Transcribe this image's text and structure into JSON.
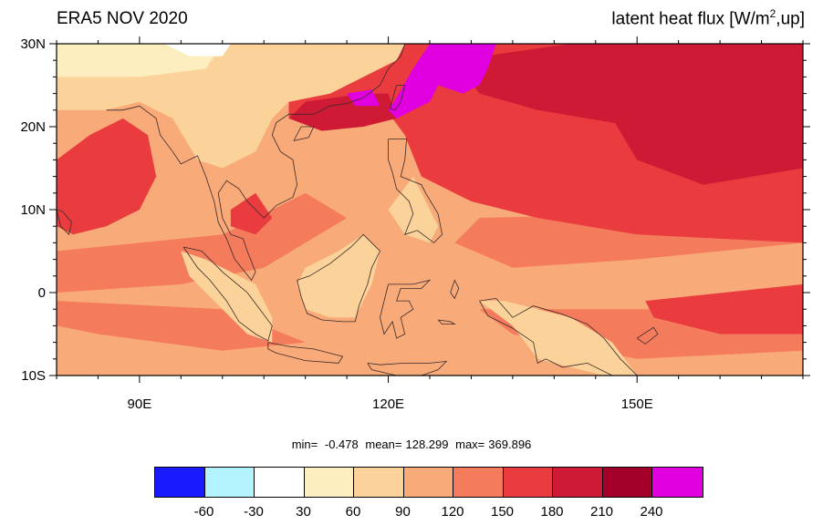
{
  "header": {
    "left_title": "ERA5 NOV 2020",
    "right_title_main": "latent heat flux [W/m",
    "right_title_sup": "2",
    "right_title_tail": ",up]"
  },
  "axes": {
    "lat_labels": [
      "30N",
      "20N",
      "10N",
      "0",
      "10S"
    ],
    "lon_labels": [
      "90E",
      "120E",
      "150E"
    ],
    "lat_values": [
      30,
      20,
      10,
      0,
      -10
    ],
    "lon_values": [
      90,
      120,
      150
    ],
    "lon_range": [
      80,
      170
    ],
    "lat_range": [
      -10,
      30
    ]
  },
  "stats": {
    "min_label": "min=",
    "min_value": "-0.478",
    "mean_label": "mean=",
    "mean_value": "128.299",
    "max_label": "max=",
    "max_value": "369.896"
  },
  "colorbar": {
    "colors": [
      "#1a1aff",
      "#b3f2ff",
      "#ffffff",
      "#fdeec0",
      "#fbd39a",
      "#f8aa78",
      "#f47c5c",
      "#ea3b3f",
      "#cf1a36",
      "#a5002a",
      "#e000e0"
    ],
    "labels": [
      "-60",
      "-30",
      "30",
      "60",
      "90",
      "120",
      "150",
      "180",
      "210",
      "240"
    ]
  },
  "map_colors": {
    "land_light": "#fdeec0",
    "ocean_base": "#f8aa78",
    "ocean_mid": "#f47c5c",
    "ocean_high": "#ea3b3f",
    "ocean_higher": "#cf1a36",
    "extreme": "#e000e0",
    "pale": "#fbd39a",
    "white": "#ffffff",
    "coast": "#3a2a2a"
  }
}
